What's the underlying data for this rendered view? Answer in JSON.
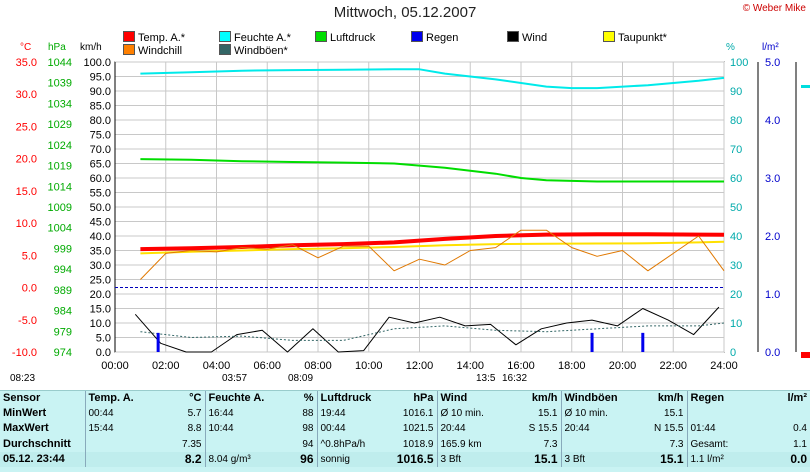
{
  "header": {
    "title": "Mittwoch, 05.12.2007",
    "copyright": "© Weber Mike"
  },
  "legend": [
    {
      "label": "Temp. A.*",
      "color": "#ff0000"
    },
    {
      "label": "Feuchte A.*",
      "color": "#00ffff"
    },
    {
      "label": "Luftdruck",
      "color": "#00dd00"
    },
    {
      "label": "Regen",
      "color": "#0000ee"
    },
    {
      "label": "Wind",
      "color": "#000000"
    },
    {
      "label": "Taupunkt*",
      "color": "#ffff00"
    },
    {
      "label": "Windchill",
      "color": "#ff8000"
    },
    {
      "label": "Windböen*",
      "color": "#336666"
    }
  ],
  "units": {
    "temp": "°C",
    "hpa": "hPa",
    "kmh": "km/h",
    "pct": "%",
    "rain": "l/m²"
  },
  "bottom_labels": {
    "l1": "08:23",
    "l2": "03:57",
    "l3": "08:09",
    "l4": "13:5",
    "l5": "16:32"
  },
  "chart_data": {
    "type": "line",
    "x_ticks": [
      "00:00",
      "02:00",
      "04:00",
      "06:00",
      "08:00",
      "10:00",
      "12:00",
      "14:00",
      "16:00",
      "18:00",
      "20:00",
      "22:00",
      "24:00"
    ],
    "x_range": [
      0,
      24
    ],
    "axes": {
      "temp": {
        "min": -10,
        "max": 35,
        "ticks": [
          "35.0",
          "30.0",
          "25.0",
          "20.0",
          "15.0",
          "10.0",
          "5.0",
          "0.0",
          "-5.0",
          "-10.0"
        ]
      },
      "hpa": {
        "min": 974,
        "max": 1044,
        "ticks": [
          "1044",
          "1039",
          "1034",
          "1029",
          "1024",
          "1019",
          "1014",
          "1009",
          "1004",
          "999",
          "994",
          "989",
          "984",
          "979",
          "974"
        ]
      },
      "kmh": {
        "min": 0,
        "max": 100,
        "ticks": [
          "100.0",
          "95.0",
          "90.0",
          "85.0",
          "80.0",
          "75.0",
          "70.0",
          "65.0",
          "60.0",
          "55.0",
          "50.0",
          "45.0",
          "40.0",
          "35.0",
          "30.0",
          "25.0",
          "20.0",
          "15.0",
          "10.0",
          "5.0",
          "0.0"
        ]
      },
      "pct": {
        "min": 0,
        "max": 100,
        "ticks": [
          "100",
          "90",
          "80",
          "70",
          "60",
          "50",
          "40",
          "30",
          "20",
          "10",
          "0"
        ]
      },
      "rain": {
        "min": 0,
        "max": 5,
        "ticks": [
          "5.0",
          "4.0",
          "3.0",
          "2.0",
          "1.0",
          "0.0"
        ]
      }
    },
    "series": [
      {
        "name": "Temp. A.*",
        "axis": "kmh",
        "color": "#ff0000",
        "width": 4,
        "x": [
          1,
          3,
          5,
          7,
          9,
          11,
          13,
          15,
          17,
          19,
          21,
          23,
          24
        ],
        "y": [
          35.5,
          35.8,
          36.2,
          36.8,
          37.2,
          37.8,
          39,
          40,
          40.5,
          40.6,
          40.6,
          40.5,
          40.4
        ]
      },
      {
        "name": "Feuchte A.*",
        "axis": "kmh",
        "color": "#00eaea",
        "width": 2,
        "x": [
          1,
          3,
          5,
          7,
          9,
          11,
          12,
          13,
          15,
          17,
          18,
          19,
          21,
          23,
          24
        ],
        "y": [
          96,
          96.5,
          97,
          97.2,
          97.3,
          97.5,
          97.5,
          96,
          94,
          91.5,
          91,
          91,
          92,
          93.5,
          94.5
        ]
      },
      {
        "name": "Luftdruck",
        "axis": "kmh",
        "color": "#00dd00",
        "width": 2,
        "x": [
          1,
          3,
          5,
          7,
          9,
          11,
          13,
          15,
          16,
          17,
          19,
          21,
          23,
          24
        ],
        "y": [
          66.5,
          66.3,
          65.8,
          65.5,
          65.3,
          65,
          63.5,
          61.5,
          60,
          59.2,
          58.8,
          58.8,
          58.8,
          58.8
        ]
      },
      {
        "name": "Taupunkt*",
        "axis": "kmh",
        "color": "#ffe000",
        "width": 2,
        "x": [
          1,
          3,
          5,
          7,
          9,
          11,
          13,
          15,
          17,
          19,
          21,
          23,
          24
        ],
        "y": [
          34,
          34.6,
          35,
          35.5,
          35.8,
          36.2,
          36.8,
          37.2,
          37.3,
          37.4,
          37.5,
          37.8,
          38
        ]
      },
      {
        "name": "Windchill",
        "axis": "kmh",
        "color": "#e07800",
        "width": 1,
        "x": [
          1,
          2,
          3,
          4,
          5,
          6,
          7,
          8,
          9,
          10,
          11,
          12,
          13,
          14,
          15,
          16,
          17,
          18,
          19,
          20,
          21,
          22,
          23,
          24
        ],
        "y": [
          25,
          34,
          35,
          34.5,
          36,
          35.5,
          37,
          32.5,
          36.5,
          36.5,
          28,
          32,
          30,
          35,
          36,
          42,
          42,
          36,
          33,
          35,
          28,
          34,
          40,
          28
        ]
      },
      {
        "name": "Wind",
        "axis": "kmh",
        "color": "#000000",
        "width": 1,
        "x": [
          0.8,
          1.8,
          2.8,
          3.8,
          4.8,
          5.8,
          6.8,
          7.8,
          8.8,
          9.8,
          10.8,
          11.8,
          12.8,
          13.8,
          14.8,
          15.8,
          16.8,
          17.8,
          18.8,
          19.8,
          20.8,
          21.8,
          22.8,
          23.8
        ],
        "y": [
          13,
          3,
          0,
          0,
          6,
          7.5,
          0,
          8,
          0,
          0.5,
          12,
          10,
          12,
          9,
          9.5,
          2.5,
          8,
          10,
          11,
          9,
          15,
          11,
          6,
          15.5
        ]
      },
      {
        "name": "Windböen*",
        "axis": "kmh",
        "color": "#336666",
        "width": 1,
        "dash": "2,2",
        "x": [
          1,
          3,
          5,
          7,
          9,
          11,
          13,
          15,
          17,
          19,
          21,
          23,
          24
        ],
        "y": [
          7,
          5,
          5.5,
          4,
          4,
          8,
          9,
          7.5,
          7,
          8,
          9,
          9,
          10
        ]
      },
      {
        "name": "Regen",
        "axis": "rain",
        "type": "bar",
        "color": "#0000ee",
        "x": [
          1.7,
          18.8,
          20.8
        ],
        "y": [
          0.33,
          0.33,
          0.33
        ]
      }
    ],
    "reference_line": {
      "axis": "temp",
      "value": 0,
      "color": "#0000bb"
    }
  },
  "stats": {
    "rows": [
      [
        "Sensor",
        "Temp. A.",
        "°C",
        "Feuchte A.",
        "%",
        "Luftdruck",
        "hPa",
        "Wind",
        "km/h",
        "Windböen",
        "km/h",
        "Regen",
        "l/m²"
      ],
      [
        "MinWert",
        "00:44",
        "5.7",
        "16:44",
        "88",
        "19:44",
        "1016.1",
        "Ø 10 min.",
        "15.1",
        "Ø 10 min.",
        "15.1",
        "",
        ""
      ],
      [
        "MaxWert",
        "15:44",
        "8.8",
        "10:44",
        "98",
        "00:44",
        "1021.5",
        "20:44",
        "S 15.5",
        "20:44",
        "N 15.5",
        "01:44",
        "0.4"
      ],
      [
        "Durchschnitt",
        "",
        "7.35",
        "",
        "94",
        "^0.8hPa/h",
        "1018.9",
        "165.9 km",
        "7.3",
        "",
        "7.3",
        "Gesamt:",
        "1.1"
      ],
      [
        "05.12. 23:44",
        "",
        "8.2",
        "8.04 g/m³",
        "96",
        "sonnig",
        "1016.5",
        "3 Bft",
        "15.1",
        "3 Bft",
        "15.1",
        "1.1 l/m²",
        "0.0"
      ]
    ]
  }
}
